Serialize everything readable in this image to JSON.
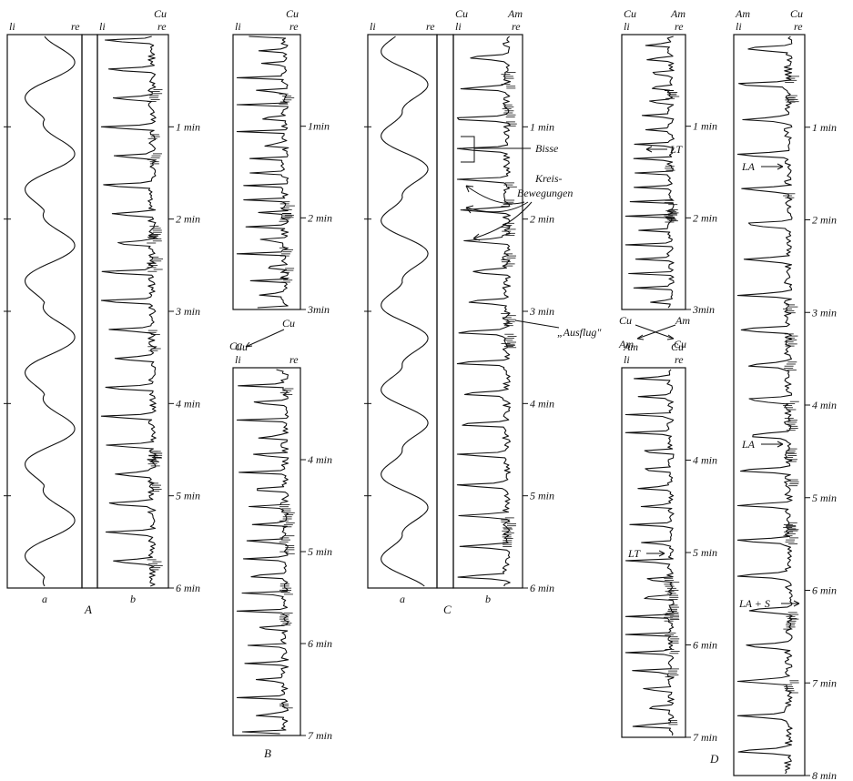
{
  "panels": [
    {
      "id": "A",
      "label": "A"
    },
    {
      "id": "B",
      "label": "B"
    },
    {
      "id": "C",
      "label": "C"
    },
    {
      "id": "D",
      "label": "D"
    }
  ],
  "strips": [
    {
      "id": "A-a",
      "panel": "A",
      "sub": "a",
      "top_left": "li",
      "top_right": "re",
      "top_left2": "",
      "top_right2": "",
      "minutes_shown": [],
      "minute_marks": 6
    },
    {
      "id": "A-b",
      "panel": "A",
      "sub": "b",
      "top_left": "li",
      "top_right": "re",
      "top_left2": "",
      "top_right2": "Cu",
      "minutes_shown": [
        "1 min",
        "2 min",
        "3 min",
        "4 min",
        "5 min",
        "6 min"
      ],
      "minute_marks": 6
    },
    {
      "id": "B-1",
      "panel": "B",
      "sub": "",
      "top_left": "li",
      "top_right": "re",
      "top_left2": "",
      "top_right2": "Cu",
      "minutes_shown": [
        "1min",
        "2 min",
        "3min"
      ],
      "minute_marks": 3
    },
    {
      "id": "B-2",
      "panel": "B",
      "sub": "",
      "top_left": "li",
      "top_right": "re",
      "top_left2": "Cu",
      "top_right2": "",
      "minutes_shown": [
        "4 min",
        "5 min",
        "6 min",
        "7 min"
      ],
      "minute_marks": 4
    },
    {
      "id": "C-a",
      "panel": "C",
      "sub": "a",
      "top_left": "li",
      "top_right": "re",
      "top_left2": "",
      "top_right2": "",
      "minutes_shown": [],
      "minute_marks": 6
    },
    {
      "id": "C-b",
      "panel": "C",
      "sub": "b",
      "top_left": "li",
      "top_right": "re",
      "top_left2": "Cu",
      "top_right2": "Am",
      "minutes_shown": [
        "1 min",
        "2 min",
        "3 min",
        "4 min",
        "5 min",
        "6 min"
      ],
      "minute_marks": 6
    },
    {
      "id": "D-1",
      "panel": "D",
      "sub": "",
      "top_left": "li",
      "top_right": "re",
      "top_left2": "Cu",
      "top_right2": "Am",
      "minutes_shown": [
        "1 min",
        "2 min",
        "3min"
      ],
      "minute_marks": 3
    },
    {
      "id": "D-2",
      "panel": "D",
      "sub": "",
      "top_left": "li",
      "top_right": "re",
      "top_left2": "Am",
      "top_right2": "Cu",
      "minutes_shown": [
        "4 min",
        "5 min",
        "6 min",
        "7 min"
      ],
      "minute_marks": 4
    },
    {
      "id": "D-3",
      "panel": "D",
      "sub": "",
      "top_left": "li",
      "top_right": "re",
      "top_left2": "Am",
      "top_right2": "Cu",
      "minutes_shown": [
        "1 min",
        "2 min",
        "3 min",
        "4 min",
        "5 min",
        "6 min",
        "7 min",
        "8 min"
      ],
      "minute_marks": 8
    }
  ],
  "transfers": [
    {
      "id": "B-swap",
      "from": "Cu",
      "to": "Cu"
    },
    {
      "id": "D-swap",
      "left_from": "Cu",
      "right_from": "Am",
      "left_to": "Am",
      "right_to": "Cu"
    }
  ],
  "annotations": {
    "bisse": "Bisse",
    "kreis_line1": "Kreis-",
    "kreis_line2": "Bewegungen",
    "ausflug": "„Ausflug\"",
    "lt_1": "LT",
    "lt_2": "LT",
    "la_1": "LA",
    "la_2": "LA",
    "la_s": "LA + S"
  }
}
